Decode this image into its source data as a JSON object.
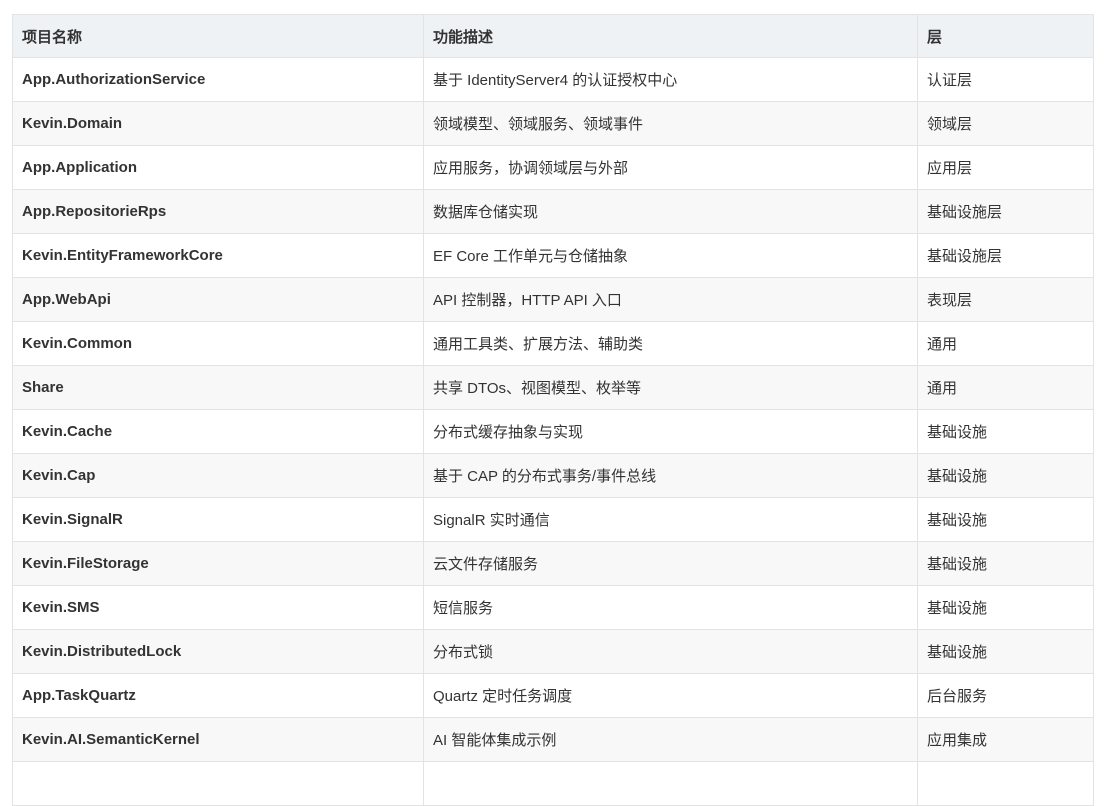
{
  "table": {
    "headers": [
      "项目名称",
      "功能描述",
      "层"
    ],
    "rows": [
      [
        "App.AuthorizationService",
        "基于 IdentityServer4 的认证授权中心",
        "认证层"
      ],
      [
        "Kevin.Domain",
        "领域模型、领域服务、领域事件",
        "领域层"
      ],
      [
        "App.Application",
        "应用服务，协调领域层与外部",
        "应用层"
      ],
      [
        "App.RepositorieRps",
        "数据库仓储实现",
        "基础设施层"
      ],
      [
        "Kevin.EntityFrameworkCore",
        "EF Core 工作单元与仓储抽象",
        "基础设施层"
      ],
      [
        "App.WebApi",
        "API 控制器，HTTP API 入口",
        "表现层"
      ],
      [
        "Kevin.Common",
        "通用工具类、扩展方法、辅助类",
        "通用"
      ],
      [
        "Share",
        "共享 DTOs、视图模型、枚举等",
        "通用"
      ],
      [
        "Kevin.Cache",
        "分布式缓存抽象与实现",
        "基础设施"
      ],
      [
        "Kevin.Cap",
        "基于 CAP 的分布式事务/事件总线",
        "基础设施"
      ],
      [
        "Kevin.SignalR",
        "SignalR 实时通信",
        "基础设施"
      ],
      [
        "Kevin.FileStorage",
        "云文件存储服务",
        "基础设施"
      ],
      [
        "Kevin.SMS",
        "短信服务",
        "基础设施"
      ],
      [
        "Kevin.DistributedLock",
        "分布式锁",
        "基础设施"
      ],
      [
        "App.TaskQuartz",
        "Quartz 定时任务调度",
        "后台服务"
      ],
      [
        "Kevin.AI.SemanticKernel",
        "AI 智能体集成示例",
        "应用集成"
      ]
    ]
  }
}
